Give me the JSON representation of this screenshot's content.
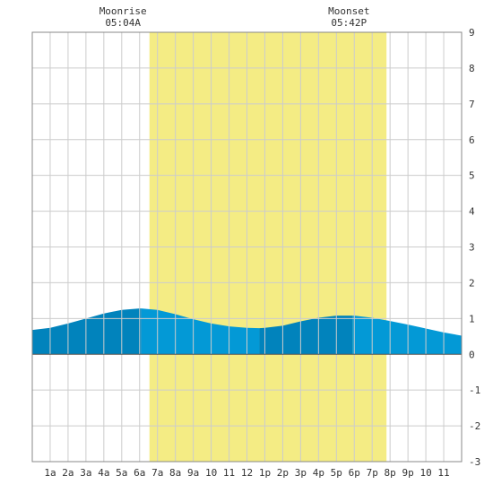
{
  "chart_data": {
    "type": "area",
    "title": "",
    "xlabel": "",
    "ylabel": "",
    "xlim": [
      0,
      24
    ],
    "ylim": [
      -3,
      9
    ],
    "x_ticks": [
      {
        "hour": 1,
        "label": "1a"
      },
      {
        "hour": 2,
        "label": "2a"
      },
      {
        "hour": 3,
        "label": "3a"
      },
      {
        "hour": 4,
        "label": "4a"
      },
      {
        "hour": 5,
        "label": "5a"
      },
      {
        "hour": 6,
        "label": "6a"
      },
      {
        "hour": 7,
        "label": "7a"
      },
      {
        "hour": 8,
        "label": "8a"
      },
      {
        "hour": 9,
        "label": "9a"
      },
      {
        "hour": 10,
        "label": "10"
      },
      {
        "hour": 11,
        "label": "11"
      },
      {
        "hour": 12,
        "label": "12"
      },
      {
        "hour": 13,
        "label": "1p"
      },
      {
        "hour": 14,
        "label": "2p"
      },
      {
        "hour": 15,
        "label": "3p"
      },
      {
        "hour": 16,
        "label": "4p"
      },
      {
        "hour": 17,
        "label": "5p"
      },
      {
        "hour": 18,
        "label": "6p"
      },
      {
        "hour": 19,
        "label": "7p"
      },
      {
        "hour": 20,
        "label": "8p"
      },
      {
        "hour": 21,
        "label": "9p"
      },
      {
        "hour": 22,
        "label": "10"
      },
      {
        "hour": 23,
        "label": "11"
      }
    ],
    "y_ticks": [
      -3,
      -2,
      -1,
      0,
      1,
      2,
      3,
      4,
      5,
      6,
      7,
      8,
      9
    ],
    "grid": true,
    "moonrise": {
      "label": "Moonrise",
      "time": "05:04A",
      "hour": 5.07
    },
    "moonset": {
      "label": "Moonset",
      "time": "05:42P",
      "hour": 17.7
    },
    "daylight": {
      "start_hour": 6.55,
      "end_hour": 19.8
    },
    "tide": {
      "x": [
        0,
        1,
        2,
        3,
        4,
        5,
        6,
        6.1,
        7,
        8,
        9,
        10,
        11,
        12,
        12.7,
        13,
        14,
        15,
        16,
        17,
        17.9,
        18,
        19,
        20,
        21,
        22,
        23,
        24
      ],
      "y": [
        0.68,
        0.74,
        0.86,
        1.0,
        1.14,
        1.24,
        1.28,
        1.28,
        1.24,
        1.12,
        0.98,
        0.86,
        0.78,
        0.74,
        0.73,
        0.74,
        0.8,
        0.92,
        1.02,
        1.08,
        1.08,
        1.08,
        1.02,
        0.93,
        0.83,
        0.72,
        0.61,
        0.52
      ],
      "turning_points": [
        6.1,
        12.7,
        17.9
      ]
    },
    "colors": {
      "daylight": "#f4ec84",
      "tide_light": "#0399d6",
      "tide_dark": "#0183bc",
      "grid": "#cccccc",
      "frame": "#888888"
    }
  }
}
